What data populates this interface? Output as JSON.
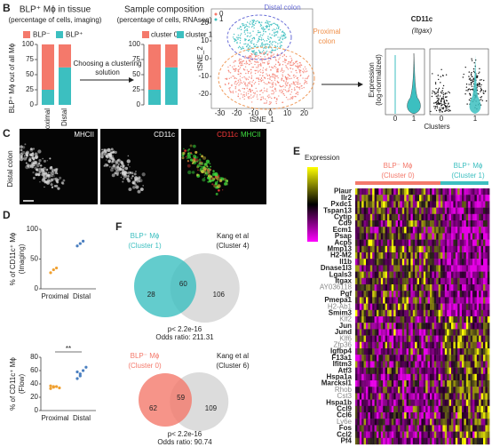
{
  "panel_b": {
    "label": "B",
    "tissue_chart": {
      "type": "bar",
      "stacked": true,
      "title": "BLP⁺ Mϕ in tissue",
      "subtitle": "(percentage of cells, imaging)",
      "ylabel": "BLP⁺ Mϕ out of all Mϕ",
      "categories": [
        "Proximal",
        "Distal"
      ],
      "series": [
        {
          "name": "BLP⁻",
          "color": "#f4796b",
          "values": [
            75,
            38
          ]
        },
        {
          "name": "BLP⁺",
          "color": "#3cbfc0",
          "values": [
            25,
            62
          ]
        }
      ],
      "ylim": [
        0,
        100
      ],
      "yticks": [
        0,
        25,
        50,
        75,
        100
      ]
    },
    "arrow_label": [
      "Choosing a clustering",
      "solution"
    ],
    "rnaseq_chart": {
      "type": "bar",
      "stacked": true,
      "title": "Sample composition",
      "subtitle": "(percentage of cells, RNAseq)",
      "series": [
        {
          "name": "cluster 0",
          "color": "#f4796b",
          "values": [
            75,
            38
          ]
        },
        {
          "name": "cluster 1",
          "color": "#3cbfc0",
          "values": [
            25,
            62
          ]
        }
      ],
      "ylim": [
        0,
        100
      ],
      "yticks": [
        0,
        25,
        50,
        75,
        100
      ]
    },
    "tsne": {
      "xlabel": "tSNE_1",
      "ylabel": "tSNE_2",
      "legend": [
        "0",
        "1"
      ],
      "xlim": [
        -35,
        25
      ],
      "ylim": [
        -28,
        28
      ],
      "xticks": [
        -30,
        -20,
        -10,
        0,
        10,
        20
      ],
      "yticks": [
        -20,
        -10,
        0,
        10,
        20
      ],
      "distal_label": "Distal colon",
      "proximal_label": [
        "Proximal",
        "colon"
      ]
    },
    "violin": {
      "title": "CD11c",
      "subtitle": "(Itgax)",
      "ylabel": [
        "Expression",
        "(log-normalized)"
      ],
      "xlabel": "Clusters",
      "categories": [
        "0",
        "1"
      ],
      "color": "#3cbfc0"
    }
  },
  "panel_c": {
    "label": "C",
    "side_label": "Distal colon",
    "channels": [
      {
        "name": "MHCII",
        "color": "#ffffff"
      },
      {
        "name": "CD11c",
        "color": "#ffffff"
      }
    ],
    "merge": [
      {
        "name": "CD11c",
        "color": "#ff3a3a"
      },
      {
        "name": "MHCII",
        "color": "#3fe03f"
      }
    ]
  },
  "panel_d": {
    "label": "D",
    "plots": [
      {
        "type": "scatter",
        "ylabel": "% of CD11c⁺ Mϕ",
        "method": "(Imaging)",
        "categories": [
          "Proximal",
          "Distal"
        ],
        "colors": [
          "#f0a030",
          "#4a7fc0"
        ],
        "values": [
          [
            27,
            32,
            35
          ],
          [
            72,
            76,
            80
          ]
        ],
        "ylim": [
          0,
          100
        ],
        "yticks": [
          0,
          50,
          100
        ]
      },
      {
        "type": "scatter",
        "ylabel": "% of CD11c⁺ Mϕ",
        "method": "(Flow)",
        "categories": [
          "Proximal",
          "Distal"
        ],
        "colors": [
          "#f0a030",
          "#4a7fc0"
        ],
        "values": [
          [
            33,
            35,
            36,
            34,
            37,
            36
          ],
          [
            48,
            55,
            60,
            65,
            58,
            52
          ]
        ],
        "ylim": [
          0,
          80
        ],
        "yticks": [
          0,
          20,
          40,
          60,
          80
        ],
        "significance": "**"
      }
    ]
  },
  "panel_e": {
    "label": "E",
    "legend_title": "Expression",
    "groups": [
      {
        "name": "BLP⁻ Mϕ",
        "subtitle": "(Cluster 0)",
        "color": "#f4796b"
      },
      {
        "name": "BLP⁺ Mϕ",
        "subtitle": "(Cluster 1)",
        "color": "#3cbfc0"
      }
    ],
    "genes": [
      {
        "name": "Plaur",
        "bold": true
      },
      {
        "name": "Ilr2",
        "bold": true
      },
      {
        "name": "Pxdc1",
        "bold": true
      },
      {
        "name": "Tspan13",
        "bold": true
      },
      {
        "name": "Cytip",
        "bold": true
      },
      {
        "name": "Cd9",
        "bold": true
      },
      {
        "name": "Ecm1",
        "bold": true
      },
      {
        "name": "Psap",
        "bold": true
      },
      {
        "name": "Acp5",
        "bold": true
      },
      {
        "name": "Mmp13",
        "bold": true
      },
      {
        "name": "H2-M2",
        "bold": true
      },
      {
        "name": "Il1b",
        "bold": true
      },
      {
        "name": "Dnase1l3",
        "bold": true
      },
      {
        "name": "Lgals3",
        "bold": true
      },
      {
        "name": "Itgax",
        "bold": true
      },
      {
        "name": "AY036118",
        "bold": false
      },
      {
        "name": "Pgf",
        "bold": true
      },
      {
        "name": "Pmepa1",
        "bold": true
      },
      {
        "name": "H2-Ab1",
        "bold": false
      },
      {
        "name": "Smim3",
        "bold": true
      },
      {
        "name": "Klf2",
        "bold": false
      },
      {
        "name": "Jun",
        "bold": true
      },
      {
        "name": "Jund",
        "bold": true
      },
      {
        "name": "Klf6",
        "bold": false
      },
      {
        "name": "Zfp36",
        "bold": false
      },
      {
        "name": "Igfbp4",
        "bold": true
      },
      {
        "name": "F13a1",
        "bold": true
      },
      {
        "name": "Ifitm3",
        "bold": true
      },
      {
        "name": "Atf3",
        "bold": true
      },
      {
        "name": "Hspa1a",
        "bold": true
      },
      {
        "name": "Marcksl1",
        "bold": true
      },
      {
        "name": "Rhob",
        "bold": false
      },
      {
        "name": "Cst3",
        "bold": false
      },
      {
        "name": "Hspa1b",
        "bold": true
      },
      {
        "name": "Ccl9",
        "bold": true
      },
      {
        "name": "Ccl6",
        "bold": true
      },
      {
        "name": "Ly6e",
        "bold": false
      },
      {
        "name": "Fos",
        "bold": true
      },
      {
        "name": "Ccl2",
        "bold": true
      },
      {
        "name": "Pf4",
        "bold": true
      }
    ]
  },
  "panel_f": {
    "label": "F",
    "venns": [
      {
        "left": {
          "name": "BLP⁺ Mϕ",
          "subtitle": "(Cluster 1)",
          "color": "#3cbfc0"
        },
        "right": {
          "name": "Kang et al",
          "subtitle": "(Cluster 4)",
          "color": "#dcdcdc"
        },
        "counts": {
          "left_only": 28,
          "overlap": 60,
          "right_only": 106
        },
        "pvalue": "p< 2.2e-16",
        "odds_ratio": "Odds ratio: 211.31"
      },
      {
        "left": {
          "name": "BLP⁻ Mϕ",
          "subtitle": "(Cluster 0)",
          "color": "#f4796b"
        },
        "right": {
          "name": "Kang et al",
          "subtitle": "(Cluster 6)",
          "color": "#dcdcdc"
        },
        "counts": {
          "left_only": 62,
          "overlap": 59,
          "right_only": 109
        },
        "pvalue": "p< 2.2e-16",
        "odds_ratio": "Odds ratio: 90.74"
      }
    ]
  }
}
